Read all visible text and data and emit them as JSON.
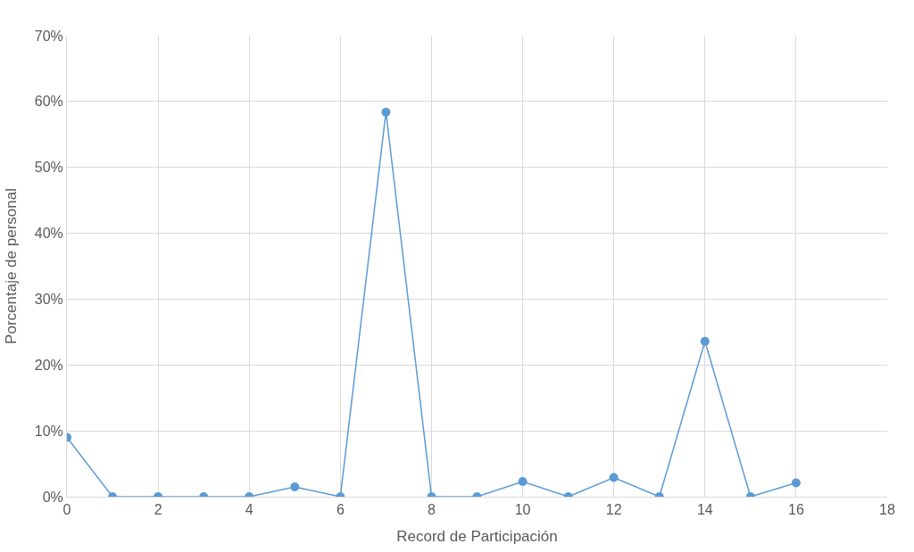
{
  "chart_data": {
    "type": "line",
    "xlabel": "Record de Participación",
    "ylabel": "Porcentaje de personal",
    "x": [
      0,
      1,
      2,
      3,
      4,
      5,
      6,
      7,
      8,
      9,
      10,
      11,
      12,
      13,
      14,
      15,
      16
    ],
    "series": [
      {
        "color": "#5b9bd5",
        "values": [
          9,
          0,
          0,
          0,
          0,
          1.5,
          0,
          58.4,
          0,
          0,
          2.3,
          0,
          2.9,
          0,
          23.6,
          0,
          2.1
        ]
      }
    ],
    "xlim": [
      0,
      18
    ],
    "xticks": [
      0,
      2,
      4,
      6,
      8,
      10,
      12,
      14,
      16,
      18
    ],
    "ylim": [
      0,
      70
    ],
    "yticks": [
      {
        "value": 0,
        "label": "0%"
      },
      {
        "value": 10,
        "label": "10%"
      },
      {
        "value": 20,
        "label": "20%"
      },
      {
        "value": 30,
        "label": "30%"
      },
      {
        "value": 40,
        "label": "40%"
      },
      {
        "value": 50,
        "label": "50%"
      },
      {
        "value": 60,
        "label": "60%"
      },
      {
        "value": 70,
        "label": "70%"
      }
    ],
    "grid": true,
    "marker": "circle",
    "line_style": "solid"
  }
}
